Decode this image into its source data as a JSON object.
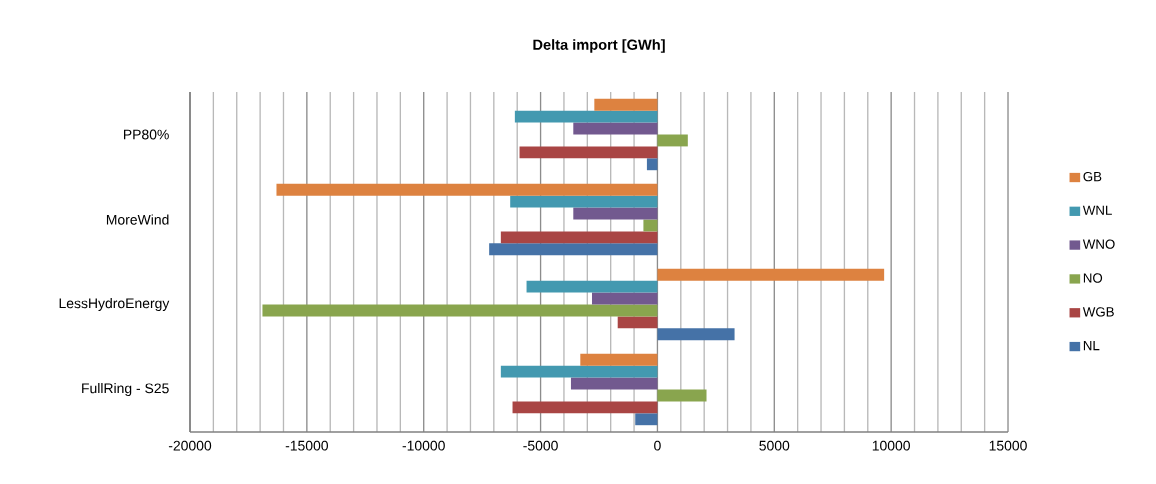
{
  "chart_data": {
    "type": "bar",
    "orientation": "horizontal",
    "title": "Delta import [GWh]",
    "categories": [
      "PP80%",
      "MoreWind",
      "LessHydroEnergy",
      "FullRing - S25"
    ],
    "series": [
      {
        "name": "NL",
        "color": "#4572a7",
        "values": [
          -450,
          -7200,
          3300,
          -950
        ]
      },
      {
        "name": "WGB",
        "color": "#a94544",
        "values": [
          -5900,
          -6700,
          -1700,
          -6200
        ]
      },
      {
        "name": "NO",
        "color": "#89a54e",
        "values": [
          1300,
          -600,
          -16900,
          2100
        ]
      },
      {
        "name": "WNO",
        "color": "#72598f",
        "values": [
          -3600,
          -3600,
          -2800,
          -3700
        ]
      },
      {
        "name": "WNL",
        "color": "#4399b0",
        "values": [
          -6100,
          -6300,
          -5600,
          -6700
        ]
      },
      {
        "name": "GB",
        "color": "#dd8240",
        "values": [
          -2700,
          -16300,
          9700,
          -3300
        ]
      }
    ],
    "xlim": [
      -20000,
      15000
    ],
    "xticks": [
      -20000,
      -15000,
      -10000,
      -5000,
      0,
      5000,
      10000,
      15000
    ],
    "grid": "x",
    "legend": "right"
  }
}
